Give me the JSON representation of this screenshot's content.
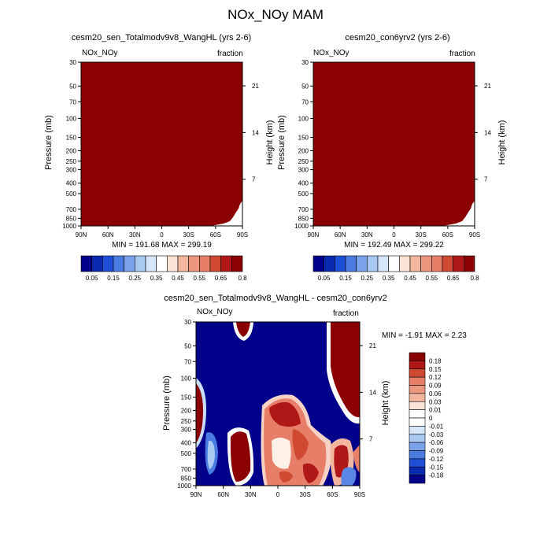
{
  "page_title": "NOx_NOy MAM",
  "colors": {
    "dark_red": "#8B0000",
    "navy": "#00008B",
    "light_gray": "#D3D3D3",
    "white": "#FFFFFF"
  },
  "chart_data": [
    {
      "type": "heatmap",
      "title": "cesm20_sen_Totalmodv9v8_WangHL (yrs 2-6)",
      "left_label": "NOx_NOy",
      "right_label": "fraction",
      "ylabel": "Pressure (mb)",
      "y2label": "Height (km)",
      "x_ticks": [
        "90N",
        "60N",
        "30N",
        "0",
        "30S",
        "60S",
        "90S"
      ],
      "y_ticks": [
        "30",
        "50",
        "70",
        "100",
        "150",
        "200",
        "250",
        "300",
        "400",
        "500",
        "700",
        "850",
        "1000"
      ],
      "y2_ticks": [
        "21",
        "14",
        "7"
      ],
      "stats": "MIN = 191.68  MAX = 299.19",
      "colorbar_labels": [
        "0.05",
        "0.15",
        "0.25",
        "0.35",
        "0.45",
        "0.55",
        "0.65",
        "0.8"
      ],
      "fill": "above range (>0.8) everywhere except lower-right corner"
    },
    {
      "type": "heatmap",
      "title": "cesm20_con6yrv2 (yrs 2-6)",
      "left_label": "NOx_NOy",
      "right_label": "fraction",
      "ylabel": "Pressure (mb)",
      "y2label": "Height (km)",
      "x_ticks": [
        "90N",
        "60N",
        "30N",
        "0",
        "30S",
        "60S",
        "90S"
      ],
      "y_ticks": [
        "30",
        "50",
        "70",
        "100",
        "150",
        "200",
        "250",
        "300",
        "400",
        "500",
        "700",
        "850",
        "1000"
      ],
      "y2_ticks": [
        "21",
        "14",
        "7"
      ],
      "stats": "MIN = 192.49  MAX = 299.22",
      "colorbar_labels": [
        "0.05",
        "0.15",
        "0.25",
        "0.35",
        "0.45",
        "0.55",
        "0.65",
        "0.8"
      ],
      "fill": "above range (>0.8) everywhere except lower-right corner"
    },
    {
      "type": "heatmap",
      "title": "cesm20_sen_Totalmodv9v8_WangHL - cesm20_con6yrv2",
      "left_label": "NOx_NOy",
      "right_label": "fraction",
      "ylabel": "Pressure (mb)",
      "y2label": "Height (km)",
      "x_ticks": [
        "90N",
        "60N",
        "30N",
        "0",
        "30S",
        "60S",
        "90S"
      ],
      "y_ticks": [
        "30",
        "50",
        "70",
        "100",
        "150",
        "200",
        "250",
        "300",
        "400",
        "500",
        "700",
        "850",
        "1000"
      ],
      "y2_ticks": [
        "21",
        "14",
        "7"
      ],
      "stats": "MIN =  -1.91  MAX =    2.23",
      "colorbar_labels": [
        "0.18",
        "0.15",
        "0.12",
        "0.09",
        "0.06",
        "0.03",
        "0.01",
        "0",
        "-0.01",
        "-0.03",
        "-0.06",
        "-0.09",
        "-0.12",
        "-0.15",
        "-0.18"
      ],
      "fill": "mostly below range (< -0.18) with positive blobs"
    }
  ]
}
